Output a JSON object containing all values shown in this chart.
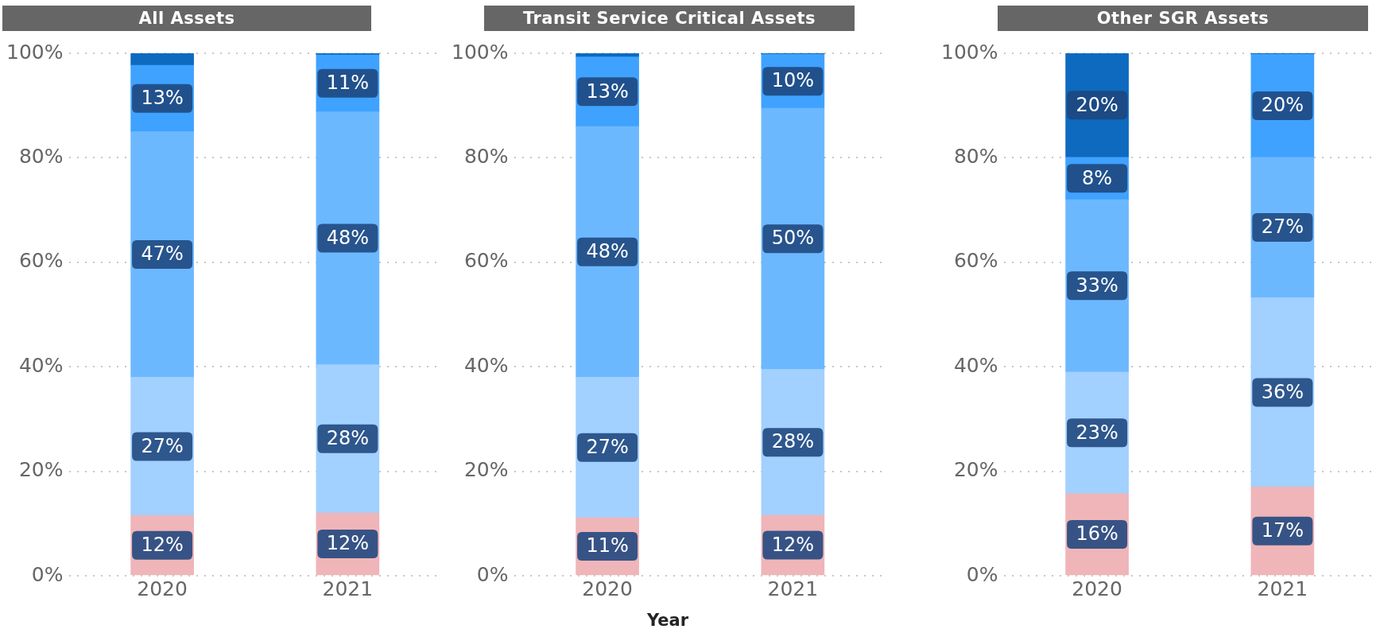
{
  "chart_data": [
    {
      "type": "bar",
      "title": "All Assets",
      "categories": [
        "2020",
        "2021"
      ],
      "stacked": true,
      "ylim": [
        0,
        100
      ],
      "yticks": [
        {
          "value": 0,
          "label": "0%"
        },
        {
          "value": 20,
          "label": "20%"
        },
        {
          "value": 40,
          "label": "40%"
        },
        {
          "value": 60,
          "label": "60%"
        },
        {
          "value": 80,
          "label": "80%"
        },
        {
          "value": 100,
          "label": "100%"
        }
      ],
      "grid": "y",
      "legend": false,
      "series": [
        {
          "color": "#efb5b9",
          "values": [
            11.5,
            12
          ],
          "value_labels": [
            "12%",
            "12%"
          ]
        },
        {
          "color": "#a2d0ff",
          "values": [
            26.5,
            28.4
          ],
          "value_labels": [
            "27%",
            "28%"
          ]
        },
        {
          "color": "#6cb8ff",
          "values": [
            47,
            48.4
          ],
          "value_labels": [
            "47%",
            "48%"
          ]
        },
        {
          "color": "#3fa2ff",
          "values": [
            12.7,
            10.9
          ],
          "value_labels": [
            "13%",
            "11%"
          ]
        },
        {
          "color": "#0d6abf",
          "values": [
            2.3,
            0.3
          ],
          "value_labels": [
            null,
            null
          ]
        }
      ]
    },
    {
      "type": "bar",
      "title": "Transit Service Critical Assets",
      "xlabel": "Year",
      "categories": [
        "2020",
        "2021"
      ],
      "stacked": true,
      "ylim": [
        0,
        100
      ],
      "yticks": [
        {
          "value": 0,
          "label": "0%"
        },
        {
          "value": 20,
          "label": "20%"
        },
        {
          "value": 40,
          "label": "40%"
        },
        {
          "value": 60,
          "label": "60%"
        },
        {
          "value": 80,
          "label": "80%"
        },
        {
          "value": 100,
          "label": "100%"
        }
      ],
      "grid": "y",
      "legend": false,
      "series": [
        {
          "color": "#efb5b9",
          "values": [
            11.1,
            11.6
          ],
          "value_labels": [
            "11%",
            "12%"
          ]
        },
        {
          "color": "#a2d0ff",
          "values": [
            26.9,
            27.9
          ],
          "value_labels": [
            "27%",
            "28%"
          ]
        },
        {
          "color": "#6cb8ff",
          "values": [
            48,
            50
          ],
          "value_labels": [
            "48%",
            "50%"
          ]
        },
        {
          "color": "#3fa2ff",
          "values": [
            13.3,
            10.3
          ],
          "value_labels": [
            "13%",
            "10%"
          ]
        },
        {
          "color": "#0d6abf",
          "values": [
            0.7,
            0.2
          ],
          "value_labels": [
            null,
            null
          ]
        }
      ]
    },
    {
      "type": "bar",
      "title": "Other SGR Assets",
      "categories": [
        "2020",
        "2021"
      ],
      "stacked": true,
      "ylim": [
        0,
        100
      ],
      "yticks": [
        {
          "value": 0,
          "label": "0%"
        },
        {
          "value": 20,
          "label": "20%"
        },
        {
          "value": 40,
          "label": "40%"
        },
        {
          "value": 60,
          "label": "60%"
        },
        {
          "value": 80,
          "label": "80%"
        },
        {
          "value": 100,
          "label": "100%"
        }
      ],
      "grid": "y",
      "legend": false,
      "series": [
        {
          "color": "#efb5b9",
          "values": [
            15.7,
            17
          ],
          "value_labels": [
            "16%",
            "17%"
          ]
        },
        {
          "color": "#a2d0ff",
          "values": [
            23.3,
            36.2
          ],
          "value_labels": [
            "23%",
            "36%"
          ]
        },
        {
          "color": "#6cb8ff",
          "values": [
            33,
            26.9
          ],
          "value_labels": [
            "33%",
            "27%"
          ]
        },
        {
          "color": "#3fa2ff",
          "values": [
            8.1,
            19.7
          ],
          "value_labels": [
            "8%",
            "20%"
          ]
        },
        {
          "color": "#0d6abf",
          "values": [
            19.9,
            0.2
          ],
          "value_labels": [
            "20%",
            null
          ]
        }
      ]
    }
  ]
}
